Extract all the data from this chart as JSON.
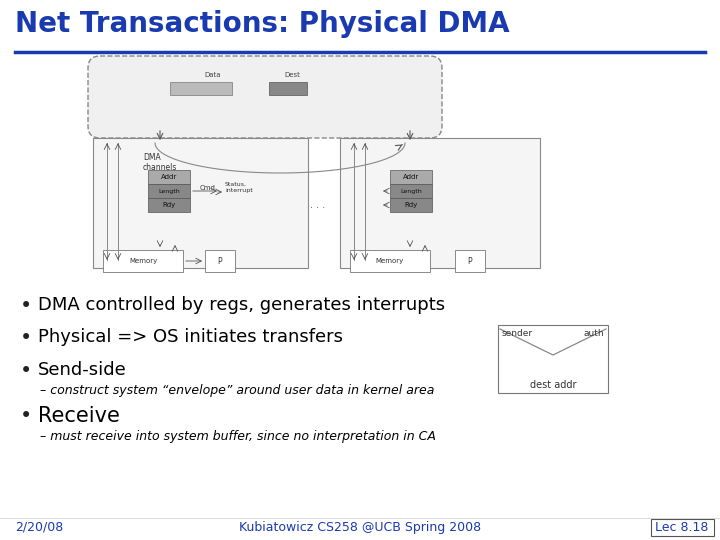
{
  "title": "Net Transactions: Physical DMA",
  "title_color": "#1a3ab0",
  "title_fontsize": 20,
  "bg_color": "#ffffff",
  "bullet_color": "#000000",
  "bullet_fontsize": 13,
  "sub_fontsize": 9,
  "bullets": [
    "DMA controlled by regs, generates interrupts",
    "Physical => OS initiates transfers",
    "Send-side"
  ],
  "sub_bullet1": "construct system “envelope” around user data in kernel area",
  "sub_bullet2": "must receive into system buffer, since no interpretation in CA",
  "receive_bullet": "Receive",
  "footer_left": "2/20/08",
  "footer_center": "Kubiatowicz CS258 @UCB Spring 2008",
  "footer_right": "Lec 8.18",
  "footer_color": "#1a3ab0",
  "line_color": "#1a3ab0",
  "envelope_sender": "sender",
  "envelope_auth": "auth",
  "envelope_dest": "dest addr"
}
